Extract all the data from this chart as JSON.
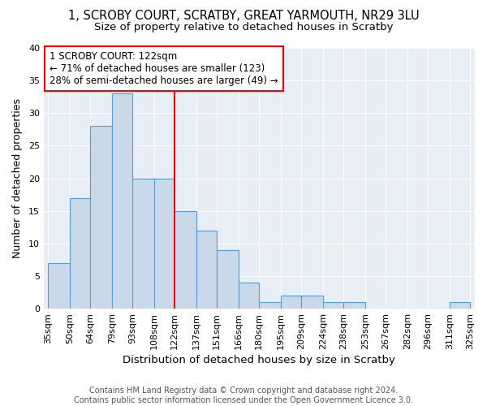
{
  "title1": "1, SCROBY COURT, SCRATBY, GREAT YARMOUTH, NR29 3LU",
  "title2": "Size of property relative to detached houses in Scratby",
  "xlabel": "Distribution of detached houses by size in Scratby",
  "ylabel": "Number of detached properties",
  "bar_edges": [
    35,
    50,
    64,
    79,
    93,
    108,
    122,
    137,
    151,
    166,
    180,
    195,
    209,
    224,
    238,
    253,
    267,
    282,
    296,
    311,
    325
  ],
  "bar_heights": [
    7,
    17,
    28,
    33,
    20,
    20,
    15,
    12,
    9,
    4,
    1,
    2,
    2,
    1,
    1,
    0,
    0,
    0,
    0,
    1
  ],
  "bar_color": "#c9d9ea",
  "bar_edge_color": "#5b9bd5",
  "vline_x": 122,
  "vline_color": "red",
  "annotation_line1": "1 SCROBY COURT: 122sqm",
  "annotation_line2": "← 71% of detached houses are smaller (123)",
  "annotation_line3": "28% of semi-detached houses are larger (49) →",
  "annotation_box_color": "white",
  "annotation_box_edge_color": "red",
  "ylim": [
    0,
    40
  ],
  "yticks": [
    0,
    5,
    10,
    15,
    20,
    25,
    30,
    35,
    40
  ],
  "background_color": "#e8eef5",
  "footer_text": "Contains HM Land Registry data © Crown copyright and database right 2024.\nContains public sector information licensed under the Open Government Licence 3.0.",
  "title_fontsize": 10.5,
  "subtitle_fontsize": 9.5,
  "xlabel_fontsize": 9.5,
  "ylabel_fontsize": 9,
  "tick_fontsize": 8,
  "annotation_fontsize": 8.5,
  "footer_fontsize": 7
}
